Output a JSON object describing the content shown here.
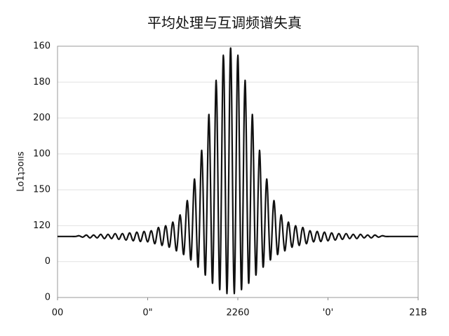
{
  "chart_data": {
    "type": "line",
    "title": "平均处理与互调频谱失真",
    "y_label": "Lo1ʇɔoııs",
    "x": [
      0,
      1,
      2,
      3,
      4,
      5,
      6,
      7,
      8,
      9,
      10,
      11,
      12,
      13,
      14,
      15,
      16,
      17,
      18,
      19,
      20,
      21,
      22,
      23,
      24,
      25,
      26,
      27,
      28,
      29,
      30,
      31,
      32,
      33,
      34,
      35,
      36,
      37,
      38,
      39,
      40,
      41,
      42,
      43,
      44,
      45,
      46,
      47,
      48,
      49,
      50,
      51,
      52,
      53,
      54,
      55,
      56,
      57,
      58,
      59,
      60,
      61,
      62,
      63,
      64,
      65,
      66,
      67,
      68,
      69,
      70,
      71,
      72,
      73,
      74,
      75,
      76,
      77,
      78,
      79,
      80,
      81,
      82,
      83,
      84,
      85,
      86,
      87,
      88,
      89,
      90,
      91,
      92,
      93,
      94,
      95,
      96,
      97,
      98,
      99,
      100
    ],
    "series": [
      {
        "color": "#111111",
        "values": [
          1.7,
          1.7,
          1.7,
          1.7,
          1.7,
          1.7,
          1.72,
          1.68,
          1.74,
          1.66,
          1.74,
          1.66,
          1.76,
          1.64,
          1.76,
          1.64,
          1.78,
          1.62,
          1.78,
          1.6,
          1.8,
          1.58,
          1.82,
          1.56,
          1.84,
          1.55,
          1.86,
          1.5,
          1.95,
          1.45,
          2.0,
          1.4,
          2.1,
          1.3,
          2.3,
          1.2,
          2.7,
          1.05,
          3.3,
          0.85,
          4.1,
          0.63,
          5.1,
          0.4,
          6.05,
          0.22,
          6.75,
          0.11,
          6.95,
          0.11,
          6.75,
          0.22,
          6.05,
          0.4,
          5.1,
          0.63,
          4.1,
          0.85,
          3.3,
          1.05,
          2.7,
          1.2,
          2.3,
          1.3,
          2.1,
          1.4,
          2.0,
          1.45,
          1.95,
          1.5,
          1.86,
          1.55,
          1.84,
          1.56,
          1.82,
          1.58,
          1.8,
          1.6,
          1.78,
          1.62,
          1.78,
          1.64,
          1.76,
          1.64,
          1.76,
          1.66,
          1.74,
          1.66,
          1.74,
          1.68,
          1.72,
          1.7,
          1.7,
          1.7,
          1.7,
          1.7,
          1.7,
          1.7,
          1.7,
          1.7,
          1.7
        ]
      }
    ],
    "xlim": [
      0,
      100
    ],
    "xticks": [
      {
        "value": 0,
        "label": "00"
      },
      {
        "value": 25,
        "label": "0\""
      },
      {
        "value": 50,
        "label": "2260"
      },
      {
        "value": 75,
        "label": "'0'"
      },
      {
        "value": 100,
        "label": "21B"
      }
    ],
    "ylim": [
      0,
      7
    ],
    "yticks": [
      {
        "value": 0,
        "label": "0"
      },
      {
        "value": 1,
        "label": "0"
      },
      {
        "value": 2,
        "label": "120"
      },
      {
        "value": 3,
        "label": "150"
      },
      {
        "value": 4,
        "label": "100"
      },
      {
        "value": 5,
        "label": "200"
      },
      {
        "value": 6,
        "label": "180"
      },
      {
        "value": 7,
        "label": "160"
      }
    ],
    "grid": true
  }
}
